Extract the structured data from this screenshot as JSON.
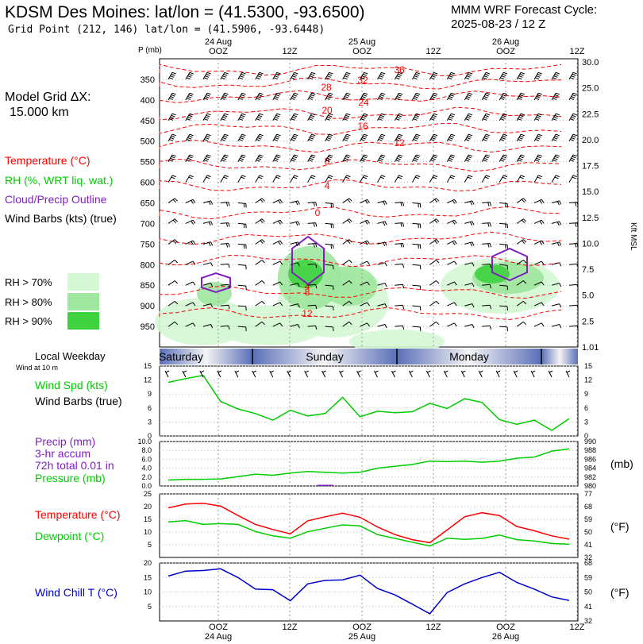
{
  "header": {
    "title": "KDSM Des Moines:  lat/lon = (41.5300, -93.6500)",
    "subtitle": "Grid Point (212, 146) lat/lon = (41.5906, -93.6448)",
    "model": "MMM WRF Forecast Cycle:",
    "cycle": "2025-08-23 / 12  Z"
  },
  "left": {
    "grid_label": "Model Grid ΔX:",
    "grid_value": "15.000 km",
    "temp_label": "Temperature (°C)",
    "rh_label": "RH (%, WRT liq. wat.)",
    "cloud_label": "Cloud/Precip Outline",
    "wind_label": "Wind Barbs (kts) (true)",
    "rh_levels": [
      "RH > 70%",
      "RH > 80%",
      "RH > 90%"
    ],
    "weekday_label": "Local Weekday",
    "wind10_label": "Wind at 10 m",
    "wspd_label": "Wind Spd (kts)",
    "wbarb_label": "Wind Barbs (true)",
    "precip_label": "Precip (mm)",
    "accum_label": "3-hr accum",
    "total_label": "72h total 0.01 in",
    "pres_label": "Pressure (mb)",
    "t2_label": "Temperature (°C)",
    "td_label": "Dewpoint (°C)",
    "wc_label": "Wind Chill T (°C)",
    "mb_unit": "(mb)",
    "f_unit1": "(°F)",
    "f_unit2": "(°F)"
  },
  "colors": {
    "temp": "#ff0000",
    "rh": "#00cc00",
    "cloud": "#7f1fbf",
    "wc": "#0000cc",
    "day_band": "#5a6fb8"
  },
  "chart_data": [
    {
      "type": "heatmap",
      "name": "time-height cross section",
      "p_label": "P (mb)",
      "kft_label": "Kft MSL",
      "top_ticks": [
        "24 Aug",
        "OOZ",
        "12Z",
        "25 Aug",
        "OOZ",
        "12Z",
        "26 Aug",
        "OOZ",
        "12Z"
      ],
      "pressure_ticks": [
        350,
        400,
        450,
        500,
        550,
        600,
        650,
        700,
        750,
        800,
        850,
        900,
        950
      ],
      "kft_ticks": [
        "30.0",
        "25.0",
        "22.5",
        "20.0",
        "17.5",
        "15.0",
        "12.5",
        "10.0",
        "7.5",
        "5.0",
        "2.5",
        "1.01"
      ],
      "isotherm_labels": [
        "36",
        "32",
        "28",
        "24",
        "20",
        "16",
        "12",
        "8",
        "4",
        "0",
        "4",
        "8",
        "12"
      ],
      "ylim": [
        1000,
        300
      ]
    },
    {
      "type": "line",
      "name": "wind speed",
      "days": [
        "Saturday",
        "Sunday",
        "Monday"
      ],
      "y_ticks": [
        0,
        3,
        6,
        9,
        12,
        15
      ],
      "ylim": [
        0,
        15
      ],
      "values": [
        11.5,
        12.3,
        13.0,
        7.4,
        5.8,
        4.8,
        3.4,
        5.5,
        4.3,
        4.8,
        8.3,
        4.1,
        5.3,
        5.0,
        5.2,
        7.0,
        5.9,
        8.0,
        7.2,
        3.5,
        2.5,
        3.4,
        1.2,
        3.7
      ]
    },
    {
      "type": "line",
      "name": "precip and pressure",
      "left_ticks": [
        "0.0",
        "2.0",
        "4.0",
        "6.0",
        "8.0",
        "10.0"
      ],
      "right_ticks": [
        980,
        982,
        984,
        986,
        988,
        990,
        992
      ],
      "ylim_left": [
        0,
        10
      ],
      "ylim_right": [
        980,
        992
      ],
      "pressure": [
        981.6,
        981.8,
        981.8,
        981.9,
        982.5,
        983.2,
        982.9,
        983.5,
        983.9,
        983.7,
        983.5,
        983.7,
        984.8,
        985.3,
        985.8,
        986.7,
        986.6,
        986.7,
        986.4,
        986.7,
        987.5,
        987.8,
        989.4,
        990.0
      ],
      "precip_mm": [
        0,
        0,
        0,
        0,
        0,
        0,
        0,
        0,
        0,
        0.25,
        0,
        0,
        0,
        0,
        0,
        0,
        0,
        0,
        0,
        0,
        0,
        0,
        0,
        0
      ]
    },
    {
      "type": "line",
      "name": "temperature dewpoint",
      "left_ticks": [
        5,
        10,
        15,
        20,
        25
      ],
      "right_ticks": [
        32,
        41,
        50,
        59,
        68,
        77
      ],
      "ylim": [
        0,
        25
      ],
      "temperature": [
        19.5,
        21.0,
        21.3,
        20.2,
        16.5,
        13.0,
        11.0,
        9.3,
        14.4,
        16.0,
        17.4,
        15.8,
        12.0,
        9.0,
        7.0,
        5.8,
        10.8,
        16.0,
        17.6,
        16.5,
        12.2,
        10.5,
        8.5,
        7.2
      ],
      "dewpoint": [
        14.0,
        14.5,
        13.0,
        13.3,
        13.0,
        10.2,
        8.5,
        7.6,
        10.1,
        11.5,
        12.8,
        12.4,
        9.0,
        7.5,
        6.0,
        4.5,
        7.6,
        7.1,
        7.5,
        8.8,
        7.0,
        6.5,
        5.5,
        5.2
      ]
    },
    {
      "type": "line",
      "name": "wind chill",
      "left_ticks": [
        5,
        10,
        15,
        20
      ],
      "right_ticks": [
        32,
        41,
        50,
        59,
        68
      ],
      "ylim": [
        0,
        20
      ],
      "bottom_ticks": [
        "OOZ",
        "24 Aug",
        "12Z",
        "OOZ",
        "25 Aug",
        "12Z",
        "OOZ",
        "26 Aug",
        "12Z"
      ],
      "values": [
        15.5,
        17.2,
        17.4,
        18.0,
        15.0,
        11.0,
        10.8,
        7.0,
        12.8,
        14.0,
        14.2,
        15.8,
        11.2,
        9.0,
        5.8,
        2.5,
        9.8,
        12.8,
        15.0,
        16.8,
        13.3,
        11.0,
        8.3,
        7.1
      ]
    }
  ]
}
